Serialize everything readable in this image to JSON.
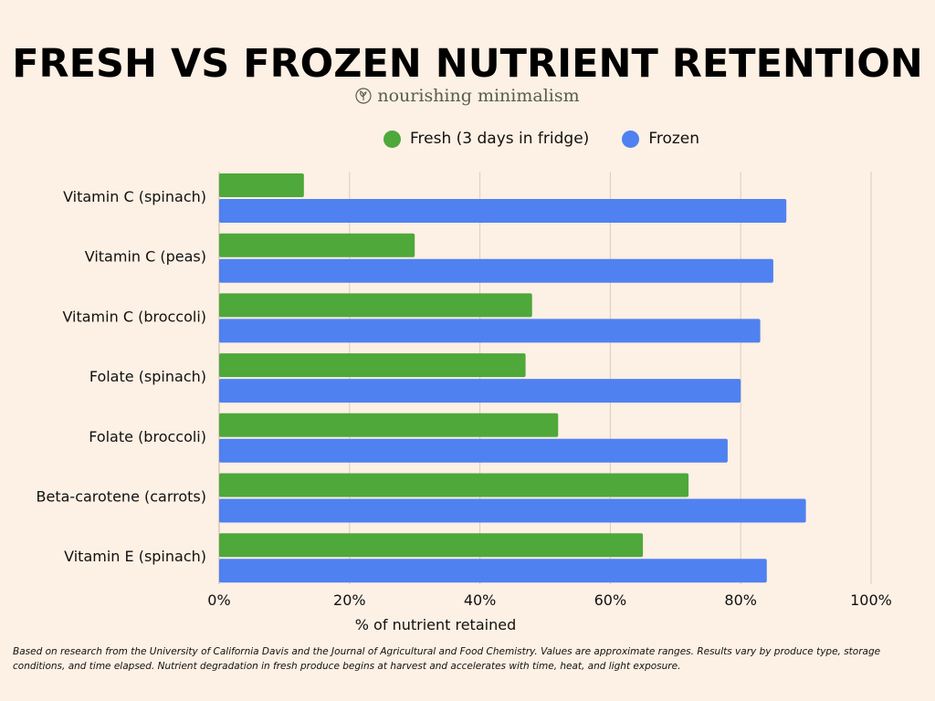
{
  "header": {
    "title": "FRESH VS FROZEN NUTRIENT RETENTION",
    "brand": "nourishing minimalism"
  },
  "colors": {
    "fresh": "#4ea83a",
    "frozen": "#4f81f0",
    "grid": "#d9ccc0",
    "background": "#fdf0e4"
  },
  "chart_data": {
    "type": "bar",
    "orientation": "horizontal",
    "categories": [
      "Vitamin C (spinach)",
      "Vitamin C (peas)",
      "Vitamin C (broccoli)",
      "Folate (spinach)",
      "Folate (broccoli)",
      "Beta-carotene (carrots)",
      "Vitamin E (spinach)"
    ],
    "series": [
      {
        "name": "Fresh (3 days in fridge)",
        "values": [
          13,
          30,
          48,
          47,
          52,
          72,
          65
        ]
      },
      {
        "name": "Frozen",
        "values": [
          87,
          85,
          83,
          80,
          78,
          90,
          84
        ]
      }
    ],
    "xlabel": "% of nutrient retained",
    "xlim": [
      0,
      100
    ],
    "xticks": [
      "0%",
      "20%",
      "40%",
      "60%",
      "80%",
      "100%"
    ],
    "legend_position": "top",
    "grid": true
  },
  "footnote": "Based on research from the University of California Davis and the Journal of Agricultural and Food Chemistry. Values are approximate ranges. Results vary by produce type, storage conditions, and time elapsed. Nutrient degradation in fresh produce begins at harvest and accelerates with time, heat, and light exposure."
}
